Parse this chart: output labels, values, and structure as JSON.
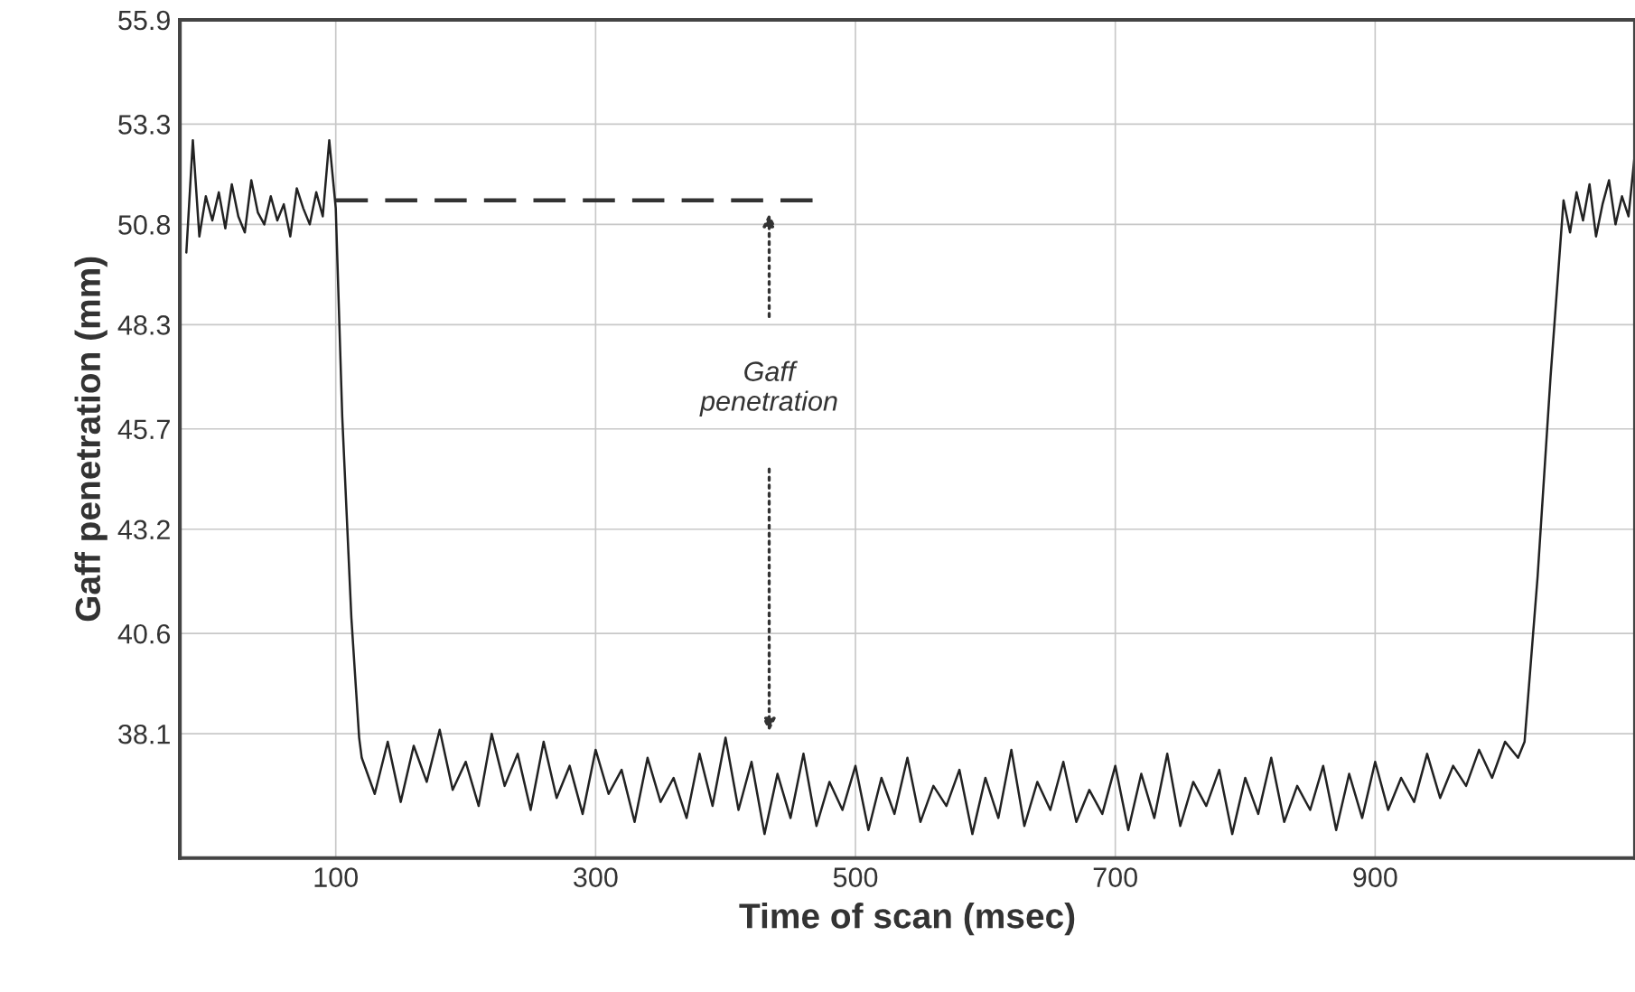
{
  "chart_data": {
    "type": "line",
    "xlabel": "Time of scan (msec)",
    "ylabel": "Gaff penetration (mm)",
    "xlim": [
      -20,
      1100
    ],
    "xticks": [
      100,
      300,
      500,
      700,
      900
    ],
    "ylim": [
      35.0,
      55.9
    ],
    "yticks": [
      55.9,
      53.3,
      50.8,
      48.3,
      45.7,
      43.2,
      40.6,
      38.1
    ],
    "grid": true,
    "legend": false,
    "series": [
      {
        "color": "#222222",
        "line_style": "solid",
        "x": [
          -15,
          -10,
          -5,
          0,
          5,
          10,
          15,
          20,
          25,
          30,
          35,
          40,
          45,
          50,
          55,
          60,
          65,
          70,
          75,
          80,
          85,
          90,
          95,
          100,
          105,
          112,
          118,
          120,
          130,
          140,
          150,
          160,
          170,
          180,
          190,
          200,
          210,
          220,
          230,
          240,
          250,
          260,
          270,
          280,
          290,
          300,
          310,
          320,
          330,
          340,
          350,
          360,
          370,
          380,
          390,
          400,
          410,
          420,
          430,
          440,
          450,
          460,
          470,
          480,
          490,
          500,
          510,
          520,
          530,
          540,
          550,
          560,
          570,
          580,
          590,
          600,
          610,
          620,
          630,
          640,
          650,
          660,
          670,
          680,
          690,
          700,
          710,
          720,
          730,
          740,
          750,
          760,
          770,
          780,
          790,
          800,
          810,
          820,
          830,
          840,
          850,
          860,
          870,
          880,
          890,
          900,
          910,
          920,
          930,
          940,
          950,
          960,
          970,
          980,
          990,
          1000,
          1010,
          1015,
          1025,
          1035,
          1045,
          1050,
          1055,
          1060,
          1065,
          1070,
          1075,
          1080,
          1085,
          1090,
          1095,
          1100
        ],
        "values": [
          50.1,
          52.9,
          50.5,
          51.5,
          50.9,
          51.6,
          50.7,
          51.8,
          51.0,
          50.6,
          51.9,
          51.1,
          50.8,
          51.5,
          50.9,
          51.3,
          50.5,
          51.7,
          51.2,
          50.8,
          51.6,
          51.0,
          52.9,
          51.2,
          46.0,
          41.0,
          38.0,
          37.5,
          36.6,
          37.9,
          36.4,
          37.8,
          36.9,
          38.2,
          36.7,
          37.4,
          36.3,
          38.1,
          36.8,
          37.6,
          36.2,
          37.9,
          36.5,
          37.3,
          36.1,
          37.7,
          36.6,
          37.2,
          35.9,
          37.5,
          36.4,
          37.0,
          36.0,
          37.6,
          36.3,
          38.0,
          36.2,
          37.4,
          35.6,
          37.1,
          36.0,
          37.6,
          35.8,
          36.9,
          36.2,
          37.3,
          35.7,
          37.0,
          36.1,
          37.5,
          35.9,
          36.8,
          36.3,
          37.2,
          35.6,
          37.0,
          36.0,
          37.7,
          35.8,
          36.9,
          36.2,
          37.4,
          35.9,
          36.7,
          36.1,
          37.3,
          35.7,
          37.1,
          36.0,
          37.6,
          35.8,
          36.9,
          36.3,
          37.2,
          35.6,
          37.0,
          36.1,
          37.5,
          35.9,
          36.8,
          36.2,
          37.3,
          35.7,
          37.1,
          36.0,
          37.4,
          36.2,
          37.0,
          36.4,
          37.6,
          36.5,
          37.3,
          36.8,
          37.7,
          37.0,
          37.9,
          37.5,
          37.9,
          42.0,
          47.0,
          51.4,
          50.6,
          51.6,
          50.9,
          51.8,
          50.5,
          51.3,
          51.9,
          50.8,
          51.5,
          51.0,
          52.6
        ]
      },
      {
        "color": "#333333",
        "line_style": "dashed",
        "x": [
          100,
          467
        ],
        "values": [
          51.4,
          51.4
        ]
      }
    ],
    "annotations": [
      "Gaff penetration"
    ]
  }
}
